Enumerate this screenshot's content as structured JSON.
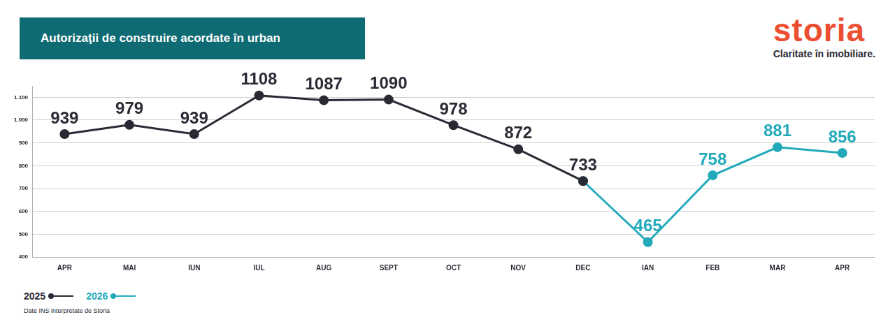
{
  "chart_data": {
    "type": "line",
    "title": "Autorizaţii de construire acordate în urban",
    "logo": "storia",
    "tagline": "Claritate în imobiliare.",
    "source": "Date INS interpretate de Storia",
    "categories": [
      "APR",
      "MAI",
      "IUN",
      "IUL",
      "AUG",
      "SEPT",
      "OCT",
      "NOV",
      "DEC",
      "IAN",
      "FEB",
      "MAR",
      "APR"
    ],
    "series": [
      {
        "name": "2025",
        "color": "#2a2a35",
        "marker": "circle",
        "values": [
          939,
          979,
          939,
          1108,
          1087,
          1090,
          978,
          872,
          733,
          null,
          null,
          null,
          null
        ]
      },
      {
        "name": "2026",
        "color": "#22aabb",
        "marker": "circle",
        "values": [
          null,
          null,
          null,
          null,
          null,
          null,
          null,
          null,
          733,
          465,
          758,
          881,
          856
        ]
      }
    ],
    "ylim": [
      400,
      1150
    ],
    "yticks": [
      400,
      500,
      600,
      700,
      800,
      900,
      {
        "value": 1000,
        "label": "1.000"
      },
      {
        "value": 1100,
        "label": "1.100"
      }
    ],
    "grid": true,
    "data_labels": true,
    "legend": "bottom-left"
  }
}
